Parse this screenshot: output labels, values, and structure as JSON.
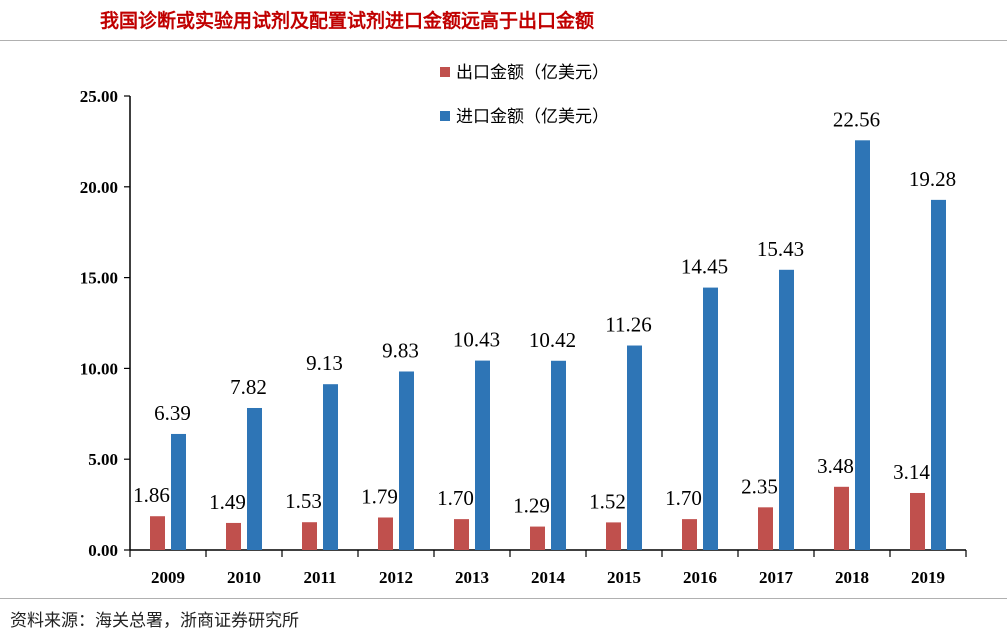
{
  "header": {
    "title": "我国诊断或实验用试剂及配置试剂进口金额远高于出口金额"
  },
  "footer": {
    "source": "资料来源：海关总署，浙商证券研究所"
  },
  "colors": {
    "export": "#c0504d",
    "import": "#2e75b6",
    "title": "#c00000"
  },
  "chart_data": {
    "type": "bar",
    "title": "我国诊断或实验用试剂及配置试剂进口金额远高于出口金额",
    "xlabel": "",
    "ylabel": "",
    "categories": [
      "2009",
      "2010",
      "2011",
      "2012",
      "2013",
      "2014",
      "2015",
      "2016",
      "2017",
      "2018",
      "2019"
    ],
    "series": [
      {
        "name": "出口金额（亿美元）",
        "color": "#c0504d",
        "values": [
          1.86,
          1.49,
          1.53,
          1.79,
          1.7,
          1.29,
          1.52,
          1.7,
          2.35,
          3.48,
          3.14
        ],
        "labels": [
          "1.86",
          "1.49",
          "1.53",
          "1.79",
          "1.70",
          "1.29",
          "1.52",
          "1.70",
          "2.35",
          "3.48",
          "3.14"
        ]
      },
      {
        "name": "进口金额（亿美元）",
        "color": "#2e75b6",
        "values": [
          6.39,
          7.82,
          9.13,
          9.83,
          10.43,
          10.42,
          11.26,
          14.45,
          15.43,
          22.56,
          19.28
        ],
        "labels": [
          "6.39",
          "7.82",
          "9.13",
          "9.83",
          "10.43",
          "10.42",
          "11.26",
          "14.45",
          "15.43",
          "22.56",
          "19.28"
        ]
      }
    ],
    "ylim": [
      0,
      25
    ],
    "yticks": [
      0,
      5,
      10,
      15,
      20,
      25
    ],
    "ytick_labels": [
      "0.00",
      "5.00",
      "10.00",
      "15.00",
      "20.00",
      "25.00"
    ],
    "grid": false,
    "legend": "top-center"
  }
}
